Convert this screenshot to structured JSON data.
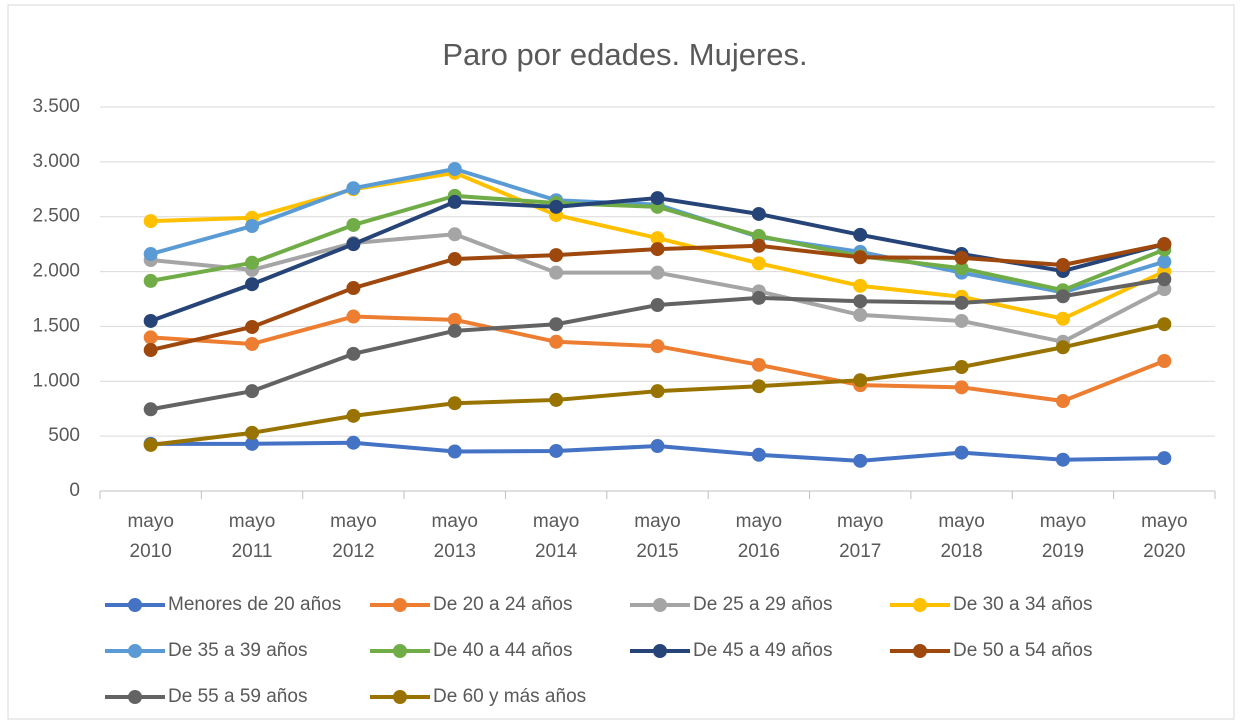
{
  "chart_data": {
    "type": "line",
    "title": "Paro por edades. Mujeres.",
    "categories": [
      "mayo 2010",
      "mayo 2011",
      "mayo 2012",
      "mayo 2013",
      "mayo 2014",
      "mayo 2015",
      "mayo 2016",
      "mayo 2017",
      "mayo 2018",
      "mayo 2019",
      "mayo 2020"
    ],
    "ylim": [
      0,
      3500
    ],
    "yticks": [
      0,
      500,
      {
        "value": 1000,
        "label": "1.000"
      },
      {
        "value": 1500,
        "label": "1.500"
      },
      {
        "value": 2000,
        "label": "2.000"
      },
      {
        "value": 2500,
        "label": "2.500"
      },
      {
        "value": 3000,
        "label": "3.000"
      },
      {
        "value": 3500,
        "label": "3.500"
      }
    ],
    "grid": true,
    "legend": "bottom",
    "series": [
      {
        "name": "Menores de 20 años",
        "color": "#4472c4",
        "values": [
          430,
          430,
          440,
          360,
          365,
          410,
          330,
          275,
          350,
          285,
          300
        ]
      },
      {
        "name": "De 20 a 24 años",
        "color": "#ed7d31",
        "values": [
          1400,
          1340,
          1590,
          1560,
          1360,
          1320,
          1150,
          965,
          945,
          820,
          1185
        ]
      },
      {
        "name": "De 25 a 29 años",
        "color": "#a5a5a5",
        "values": [
          2105,
          2015,
          2260,
          2340,
          1990,
          1990,
          1820,
          1605,
          1550,
          1360,
          1840
        ]
      },
      {
        "name": "De 30 a 34 años",
        "color": "#ffc000",
        "values": [
          2460,
          2490,
          2750,
          2900,
          2515,
          2305,
          2075,
          1870,
          1770,
          1570,
          2000
        ]
      },
      {
        "name": "De 35 a 39 años",
        "color": "#5b9bd5",
        "values": [
          2160,
          2415,
          2760,
          2935,
          2650,
          2610,
          2315,
          2180,
          1990,
          1810,
          2090
        ]
      },
      {
        "name": "De 40 a 44 años",
        "color": "#70ad47",
        "values": [
          1915,
          2080,
          2425,
          2690,
          2625,
          2590,
          2325,
          2140,
          2030,
          1830,
          2200
        ]
      },
      {
        "name": "De 45 a 49 años",
        "color": "#264478",
        "values": [
          1550,
          1885,
          2250,
          2635,
          2590,
          2670,
          2525,
          2335,
          2160,
          2005,
          2250
        ]
      },
      {
        "name": "De 50 a 54 años",
        "color": "#9e480e",
        "values": [
          1285,
          1495,
          1850,
          2115,
          2150,
          2205,
          2235,
          2130,
          2125,
          2060,
          2250
        ]
      },
      {
        "name": "De 55 a 59 años",
        "color": "#636363",
        "values": [
          745,
          910,
          1250,
          1460,
          1520,
          1695,
          1760,
          1730,
          1715,
          1775,
          1930
        ]
      },
      {
        "name": "De 60 y más años",
        "color": "#997300",
        "values": [
          420,
          530,
          685,
          800,
          830,
          910,
          955,
          1010,
          1130,
          1310,
          1520
        ]
      }
    ]
  }
}
